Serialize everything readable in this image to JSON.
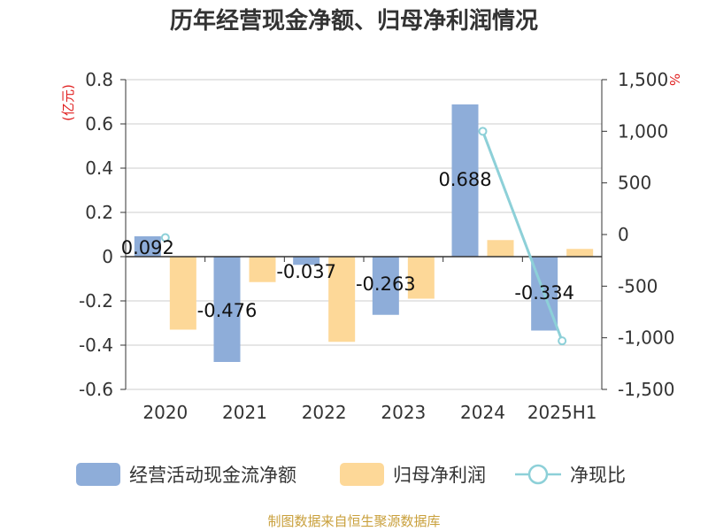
{
  "chart_data": {
    "type": "bar",
    "title": "历年经营现金净额、归母净利润情况",
    "categories": [
      "2020",
      "2021",
      "2022",
      "2023",
      "2024",
      "2025H1"
    ],
    "y_left_unit": "(亿元)",
    "y_right_unit": "%",
    "y_left_range": [
      -0.6,
      0.8
    ],
    "y_left_ticks": [
      "0.8",
      "0.6",
      "0.4",
      "0.2",
      "0",
      "-0.2",
      "-0.4",
      "-0.6"
    ],
    "y_right_range": [
      -1500,
      1500
    ],
    "y_right_ticks": [
      "1,500",
      "1,000",
      "500",
      "0",
      "-500",
      "-1,000",
      "-1,500"
    ],
    "grid": true,
    "legend_position": "bottom",
    "series": [
      {
        "name": "经营活动现金流净额",
        "kind": "bar",
        "axis": "left",
        "color": "#8eadd9",
        "values": [
          0.092,
          -0.476,
          -0.037,
          -0.263,
          0.688,
          -0.334
        ],
        "labels": [
          "0.092",
          "-0.476",
          "-0.037",
          "-0.263",
          "0.688",
          "-0.334"
        ]
      },
      {
        "name": "归母净利润",
        "kind": "bar",
        "axis": "left",
        "color": "#fdd898",
        "values": [
          -0.33,
          -0.115,
          -0.385,
          -0.19,
          0.075,
          0.035
        ]
      },
      {
        "name": "净现比",
        "kind": "line",
        "axis": "right",
        "color": "#8dd0d8",
        "values": [
          null,
          null,
          null,
          null,
          1000,
          -1030
        ]
      }
    ],
    "right_axis_extra_marker": {
      "category": "2020",
      "value": -30
    },
    "source": "制图数据来自恒生聚源数据库"
  }
}
